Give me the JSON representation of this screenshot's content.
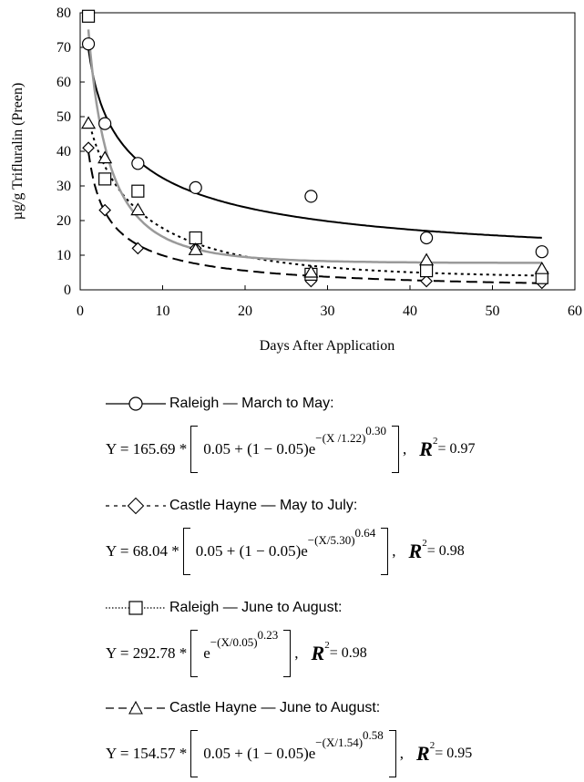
{
  "chart_data": {
    "type": "scatter",
    "title": "",
    "xlabel": "Days After Application",
    "ylabel": "µg/g Trifluralin (Preen)",
    "xlim": [
      0,
      60
    ],
    "ylim": [
      0,
      80
    ],
    "x_ticks": [
      0,
      10,
      20,
      30,
      40,
      50,
      60
    ],
    "y_ticks": [
      0,
      10,
      20,
      30,
      40,
      50,
      60,
      70,
      80
    ],
    "grid": false,
    "series": [
      {
        "name": "Raleigh — March to May:",
        "marker": "circle",
        "line": "solid",
        "x": [
          1,
          3,
          7,
          14,
          28,
          42,
          56
        ],
        "y": [
          71,
          48,
          36.5,
          29.5,
          27,
          15,
          11
        ],
        "fit": {
          "a": 165.69,
          "c": 0.05,
          "b": 1.22,
          "k": 0.3
        },
        "equation_left": "Y = 165.69 *",
        "equation_body": "0.05 + (1 − 0.05)e",
        "exponent_base": "−(X /1.22)",
        "exponent_power": "0.30",
        "r2_label": "R",
        "r2_power": "2",
        "r2_value": "= 0.97"
      },
      {
        "name": "Castle Hayne — May to July:",
        "marker": "diamond",
        "line": "dotted",
        "x": [
          1,
          3,
          7,
          14,
          28,
          42,
          56
        ],
        "y": [
          41,
          23,
          12,
          12,
          2.5,
          2.5,
          2
        ],
        "fit": {
          "a": 68.04,
          "c": 0.05,
          "b": 5.3,
          "k": 0.64
        },
        "equation_left": "Y = 68.04 *",
        "equation_body": "0.05 + (1 − 0.05)e",
        "exponent_base": "−(X/5.30)",
        "exponent_power": "0.64",
        "r2_label": "R",
        "r2_power": "2",
        "r2_value": "= 0.98"
      },
      {
        "name": "Raleigh — June to August:",
        "marker": "square",
        "line": "longdash",
        "x": [
          1,
          3,
          7,
          14,
          28,
          42,
          56
        ],
        "y": [
          79,
          32,
          28.5,
          15,
          4.5,
          5.5,
          3.5
        ],
        "fit": {
          "a": 292.78,
          "c": 0,
          "b": 0.05,
          "k": 0.23
        },
        "equation_left": "Y = 292.78 *",
        "equation_body": "e",
        "exponent_base": "−(X/0.05)",
        "exponent_power": "0.23",
        "r2_label": "R",
        "r2_power": "2",
        "r2_value": "= 0.98"
      },
      {
        "name": "Castle Hayne — June to August:",
        "marker": "triangle",
        "line": "gray",
        "x": [
          1,
          3,
          7,
          14,
          28,
          42,
          56
        ],
        "y": [
          48,
          38,
          23,
          11.5,
          5,
          8.5,
          6
        ],
        "fit": {
          "a": 154.57,
          "c": 0.05,
          "b": 1.54,
          "k": 0.58
        },
        "equation_left": "Y = 154.57 *",
        "equation_body": "0.05 + (1 − 0.05)e",
        "exponent_base": "−(X/1.54)",
        "exponent_power": "0.58",
        "r2_label": "R",
        "r2_power": "2",
        "r2_value": "= 0.95"
      }
    ]
  }
}
